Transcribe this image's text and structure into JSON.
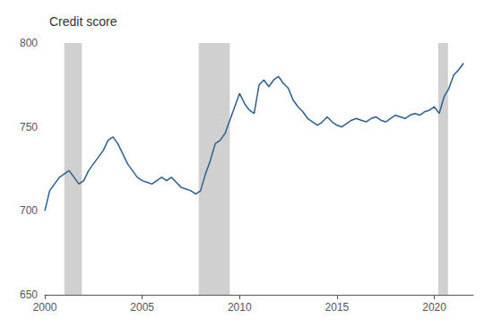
{
  "chart_data": {
    "type": "line",
    "title": "Credit score",
    "x": [
      2000.0,
      2000.25,
      2000.5,
      2000.75,
      2001.0,
      2001.25,
      2001.5,
      2001.75,
      2002.0,
      2002.25,
      2002.5,
      2002.75,
      2003.0,
      2003.25,
      2003.5,
      2003.75,
      2004.0,
      2004.25,
      2004.5,
      2004.75,
      2005.0,
      2005.25,
      2005.5,
      2005.75,
      2006.0,
      2006.25,
      2006.5,
      2006.75,
      2007.0,
      2007.25,
      2007.5,
      2007.75,
      2008.0,
      2008.25,
      2008.5,
      2008.75,
      2009.0,
      2009.25,
      2009.5,
      2009.75,
      2010.0,
      2010.25,
      2010.5,
      2010.75,
      2011.0,
      2011.25,
      2011.5,
      2011.75,
      2012.0,
      2012.25,
      2012.5,
      2012.75,
      2013.0,
      2013.25,
      2013.5,
      2013.75,
      2014.0,
      2014.25,
      2014.5,
      2014.75,
      2015.0,
      2015.25,
      2015.5,
      2015.75,
      2016.0,
      2016.25,
      2016.5,
      2016.75,
      2017.0,
      2017.25,
      2017.5,
      2017.75,
      2018.0,
      2018.25,
      2018.5,
      2018.75,
      2019.0,
      2019.25,
      2019.5,
      2019.75,
      2020.0,
      2020.25,
      2020.5,
      2020.75,
      2021.0,
      2021.25,
      2021.5
    ],
    "values": [
      700,
      712,
      716,
      720,
      722,
      724,
      720,
      716,
      718,
      724,
      728,
      732,
      736,
      742,
      744,
      740,
      734,
      728,
      724,
      720,
      718,
      717,
      716,
      718,
      720,
      718,
      720,
      717,
      714,
      713,
      712,
      710,
      712,
      722,
      730,
      740,
      742,
      746,
      754,
      762,
      770,
      764,
      760,
      758,
      775,
      778,
      774,
      778,
      780,
      776,
      773,
      766,
      762,
      759,
      755,
      753,
      751,
      753,
      756,
      753,
      751,
      750,
      752,
      754,
      755,
      754,
      753,
      755,
      756,
      754,
      753,
      755,
      757,
      756,
      755,
      757,
      758,
      757,
      759,
      760,
      762,
      758,
      768,
      773,
      781,
      784,
      788
    ],
    "color": "#2b5f8e",
    "recessions": {
      "color": "#d0d0d0",
      "spans": [
        [
          2001.0,
          2001.9
        ],
        [
          2007.9,
          2009.5
        ],
        [
          2020.2,
          2020.7
        ]
      ]
    },
    "xlim": [
      2000.0,
      2022.0
    ],
    "xticks": [
      2000,
      2005,
      2010,
      2015,
      2020
    ],
    "ylim": [
      650,
      800
    ],
    "yticks": [
      650,
      700,
      750,
      800
    ],
    "grid": false
  }
}
